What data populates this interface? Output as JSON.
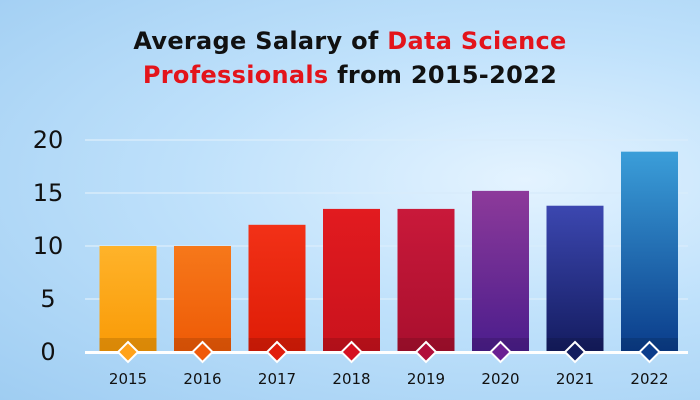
{
  "title": {
    "line1_a": "Average Salary of ",
    "line1_b": "Data Science",
    "line2_a": "Professionals",
    "line2_b": " from 2015-2022"
  },
  "colors": {
    "title_highlight": "#e3141b",
    "grid": "#d8ecfb",
    "baseline": "#ffffff"
  },
  "chart_data": {
    "type": "bar",
    "title": "Average Salary of Data Science Professionals from 2015-2022",
    "xlabel": "",
    "ylabel": "",
    "categories": [
      "2015",
      "2016",
      "2017",
      "2018",
      "2019",
      "2020",
      "2021",
      "2022"
    ],
    "values": [
      10,
      10,
      12,
      13.5,
      13.5,
      15.2,
      13.8,
      18.9
    ],
    "yticks": [
      0,
      5,
      10,
      15,
      20
    ],
    "ylim": [
      0,
      20
    ],
    "grid": true,
    "legend": "none",
    "bar_colors": [
      [
        "#ffb32a",
        "#f99a06"
      ],
      [
        "#f6781a",
        "#ee5a06"
      ],
      [
        "#f23117",
        "#de1c06"
      ],
      [
        "#e21b1f",
        "#c9121d"
      ],
      [
        "#c9193a",
        "#a90f2e"
      ],
      [
        "#8d3a9a",
        "#4b1d8c"
      ],
      [
        "#3c47b0",
        "#141c60"
      ],
      [
        "#3b9ed9",
        "#0a3c8a"
      ]
    ],
    "marker_colors": [
      "#ffa21a",
      "#f05a0a",
      "#e11d0c",
      "#d61122",
      "#b10d3a",
      "#6a2093",
      "#141d5e",
      "#0b3d8c"
    ]
  }
}
